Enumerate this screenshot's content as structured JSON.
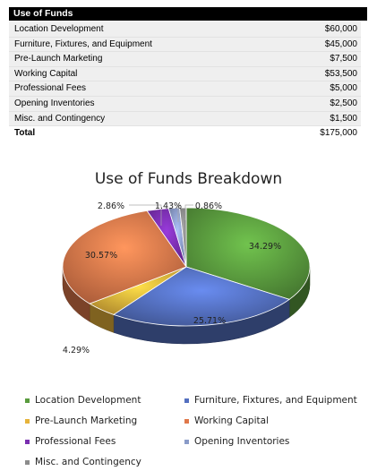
{
  "table": {
    "header": "Use of Funds",
    "rows": [
      {
        "label": "Location Development",
        "value": "$60,000"
      },
      {
        "label": "Furniture, Fixtures, and Equipment",
        "value": "$45,000"
      },
      {
        "label": "Pre-Launch Marketing",
        "value": "$7,500"
      },
      {
        "label": "Working Capital",
        "value": "$53,500"
      },
      {
        "label": "Professional Fees",
        "value": "$5,000"
      },
      {
        "label": "Opening Inventories",
        "value": "$2,500"
      },
      {
        "label": "Misc. and Contingency",
        "value": "$1,500"
      }
    ],
    "total": {
      "label": "Total",
      "value": "$175,000"
    }
  },
  "chart_data": {
    "type": "pie",
    "title": "Use of Funds Breakdown",
    "categories": [
      "Location Development",
      "Furniture, Fixtures, and Equipment",
      "Pre-Launch Marketing",
      "Working Capital",
      "Professional Fees",
      "Opening Inventories",
      "Misc. and Contingency"
    ],
    "values": [
      60000,
      45000,
      7500,
      53500,
      5000,
      2500,
      1500
    ],
    "labels": [
      "34.29%",
      "25.71%",
      "4.29%",
      "30.57%",
      "2.86%",
      "1.43%",
      "0.86%"
    ],
    "colors": [
      "#5a9c3e",
      "#5470c0",
      "#e6b33a",
      "#e0784a",
      "#7a2fb0",
      "#8a9bc8",
      "#8c8c8c"
    ],
    "legend_position": "bottom",
    "style": "3d-pie"
  }
}
